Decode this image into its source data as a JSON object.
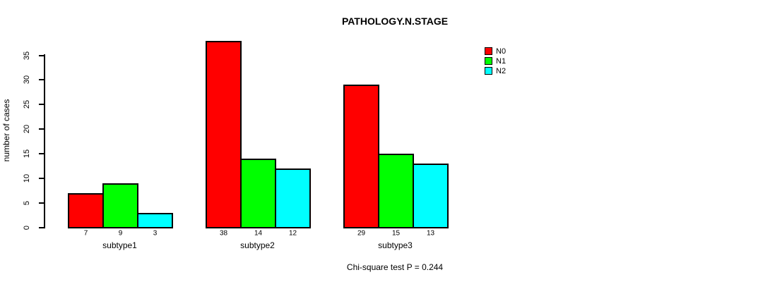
{
  "colors": {
    "background": "#FFFFFF",
    "text": "#000000",
    "axis": "#000000"
  },
  "chart_data": {
    "type": "bar",
    "title": "PATHOLOGY.N.STAGE",
    "ylabel": "number of cases",
    "xlabel": "",
    "categories": [
      "subtype1",
      "subtype2",
      "subtype3"
    ],
    "series": [
      {
        "name": "N0",
        "color": "#FF0000",
        "values": [
          7,
          38,
          29
        ]
      },
      {
        "name": "N1",
        "color": "#00FF00",
        "values": [
          9,
          14,
          15
        ]
      },
      {
        "name": "N2",
        "color": "#00FFFF",
        "values": [
          3,
          12,
          13
        ]
      }
    ],
    "value_labels": [
      [
        7,
        9,
        3
      ],
      [
        38,
        14,
        12
      ],
      [
        29,
        15,
        13
      ]
    ],
    "yticks": [
      0,
      5,
      10,
      15,
      20,
      25,
      30,
      35
    ],
    "ylim": [
      0,
      38
    ],
    "grid": false,
    "legend": {
      "position": "top-right",
      "entries": [
        "N0",
        "N1",
        "N2"
      ]
    },
    "annotation": "Chi-square test P = 0.244"
  }
}
